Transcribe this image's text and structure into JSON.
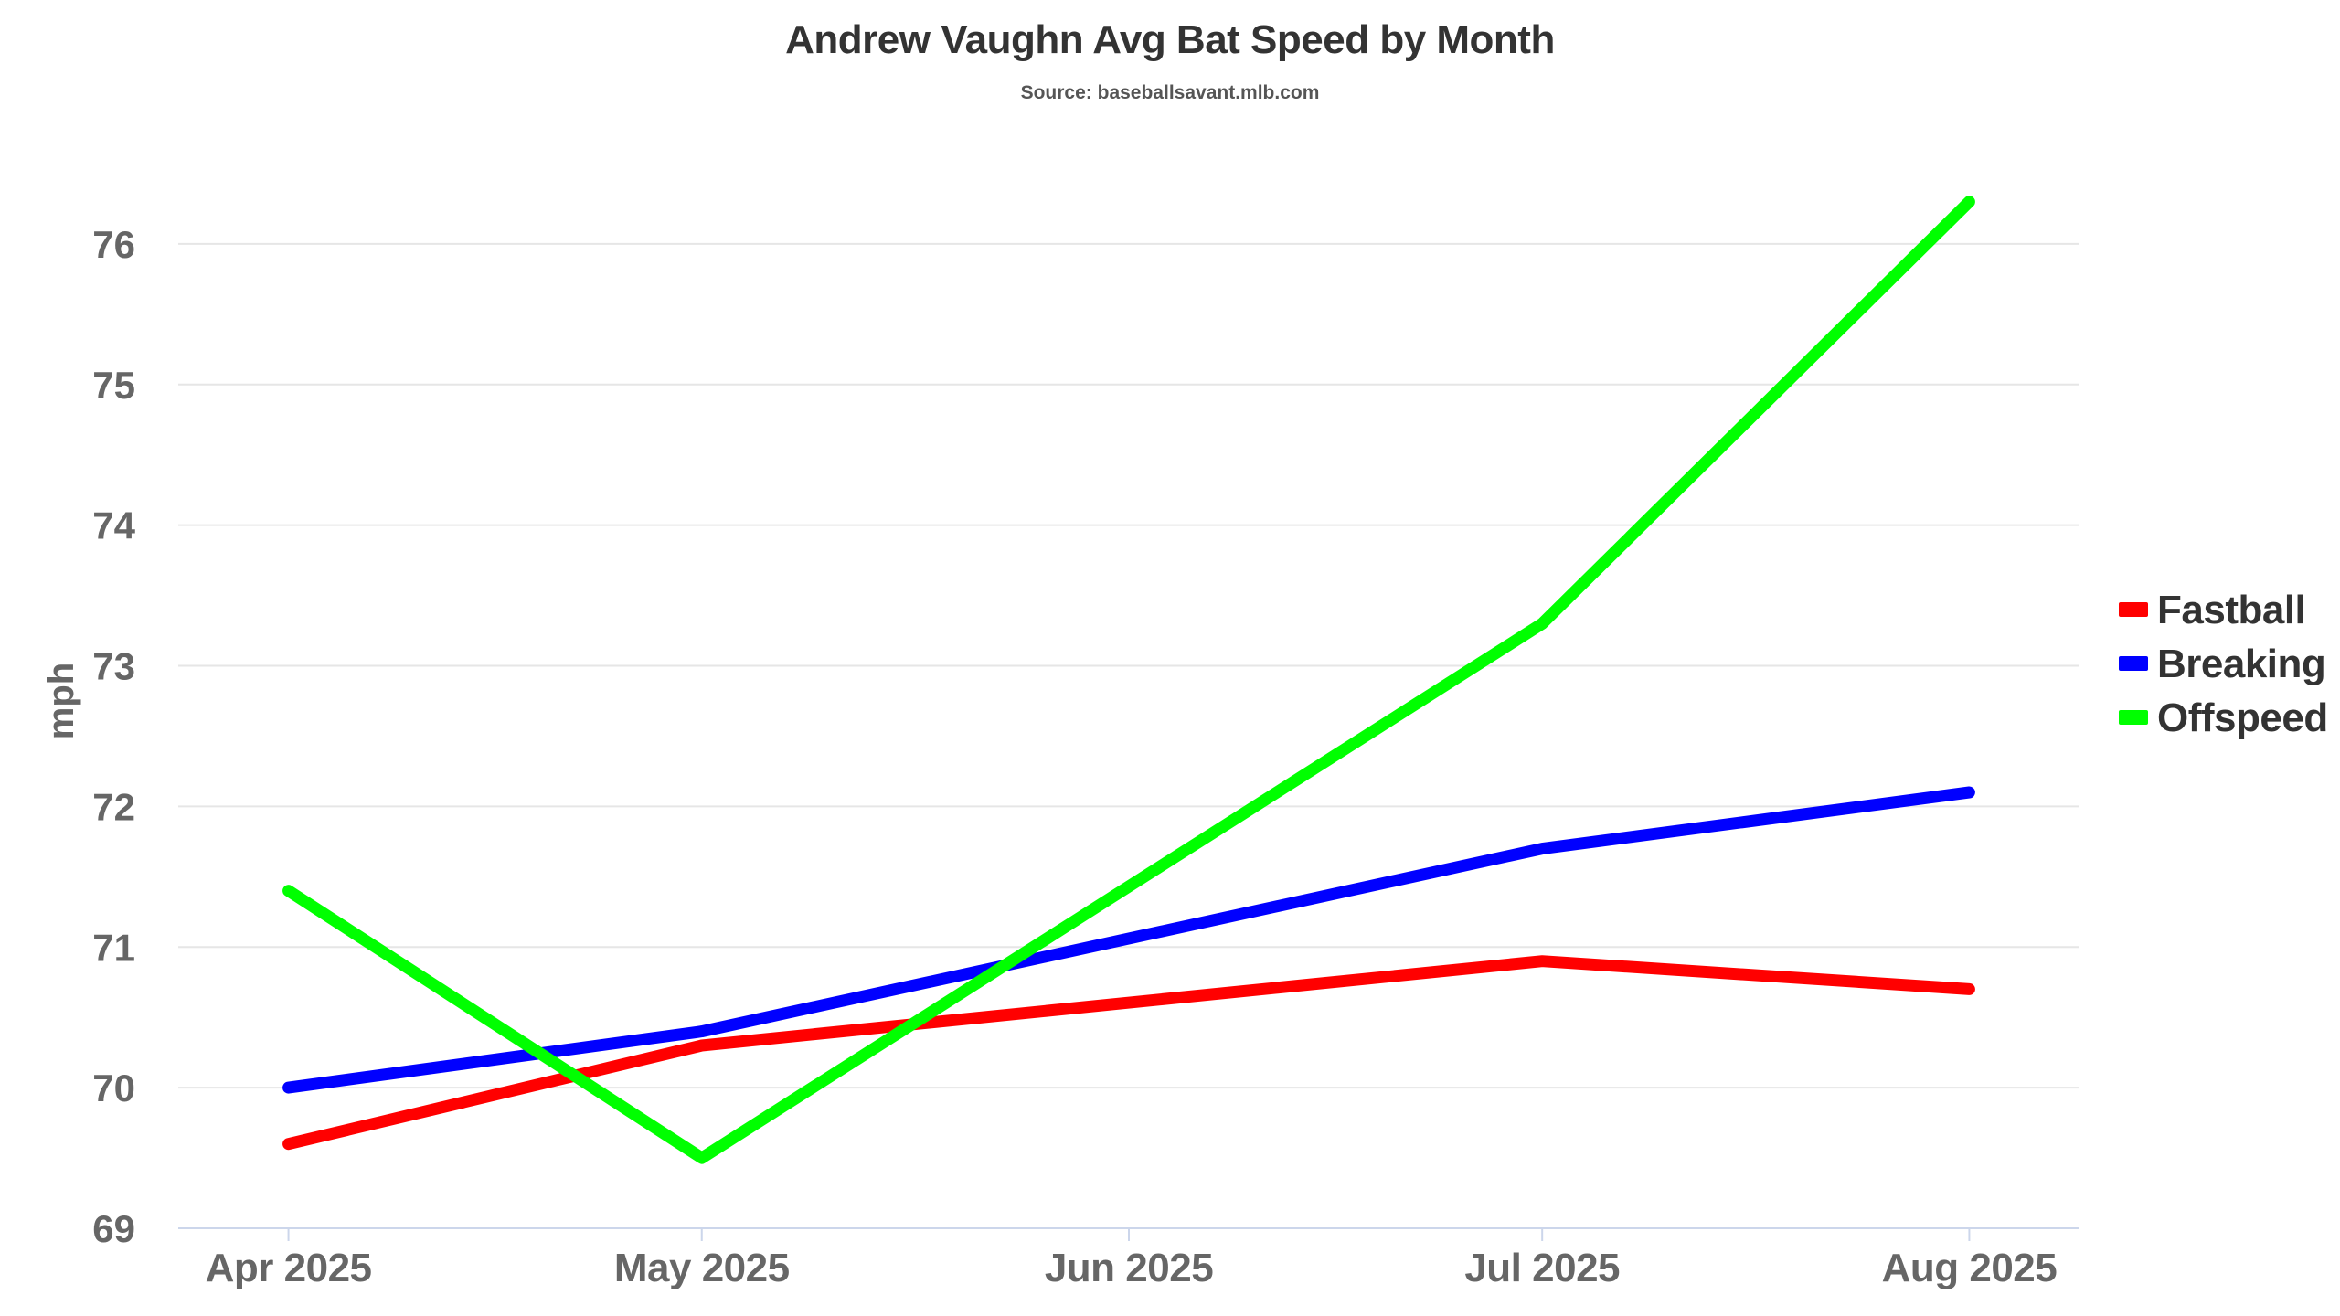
{
  "chart_data": {
    "type": "line",
    "title": "Andrew Vaughn Avg Bat Speed by Month",
    "subtitle": "Source: baseballsavant.mlb.com",
    "xlabel": "",
    "ylabel": "mph",
    "x_axis_type": "date",
    "x": [
      "2025-04-01",
      "2025-05-01",
      "2025-07-01",
      "2025-08-01"
    ],
    "x_ticks": [
      {
        "date": "2025-04-01",
        "label": "Apr 2025"
      },
      {
        "date": "2025-05-01",
        "label": "May 2025"
      },
      {
        "date": "2025-06-01",
        "label": "Jun 2025"
      },
      {
        "date": "2025-07-01",
        "label": "Jul 2025"
      },
      {
        "date": "2025-08-01",
        "label": "Aug 2025"
      }
    ],
    "y_ticks": [
      69,
      70,
      71,
      72,
      73,
      74,
      75,
      76
    ],
    "ylim": [
      69,
      76.5
    ],
    "grid": true,
    "legend_position": "right",
    "series": [
      {
        "name": "Fastball",
        "color": "#ff0000",
        "values": [
          69.6,
          70.3,
          70.9,
          70.7
        ]
      },
      {
        "name": "Breaking",
        "color": "#0000ff",
        "values": [
          70.0,
          70.4,
          71.7,
          72.1
        ]
      },
      {
        "name": "Offspeed",
        "color": "#00ff00",
        "values": [
          71.4,
          69.5,
          73.3,
          76.3
        ]
      }
    ]
  }
}
